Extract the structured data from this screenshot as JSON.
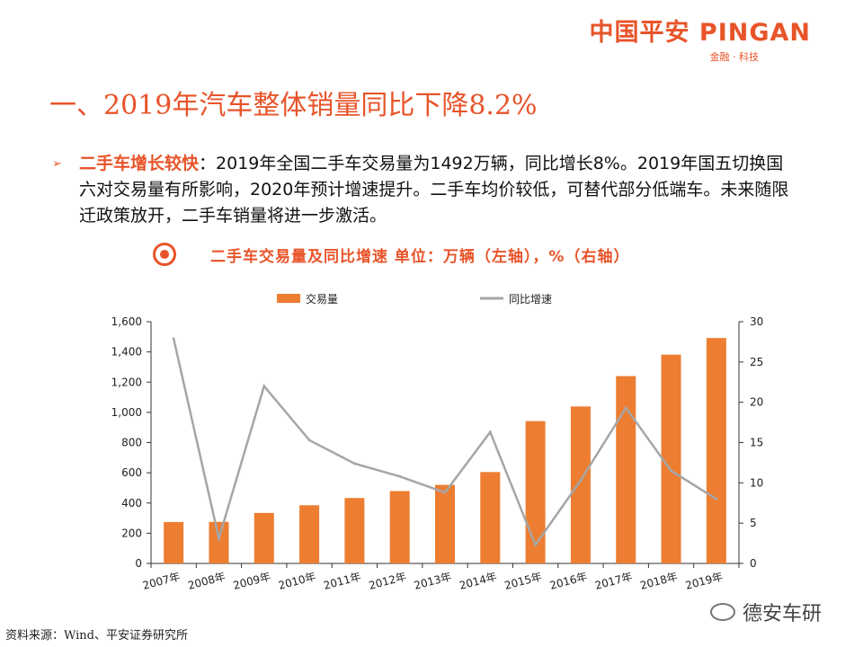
{
  "logo": {
    "main": "中国平安 PINGAN",
    "sub": "金融 · 科技"
  },
  "title": "一、2019年汽车整体销量同比下降8.2%",
  "bullet": {
    "highlight": "二手车增长较快",
    "text": "：2019年全国二手车交易量为1492万辆，同比增长8%。2019年国五切换国六对交易量有所影响，2020年预计增速提升。二手车均价较低，可替代部分低端车。未来随限迁政策放开，二手车销量将进一步激活。"
  },
  "chart_title": "二手车交易量及同比增速 单位：万辆（左轴），%（右轴）",
  "source": "资料来源：Wind、平安证券研究所",
  "watermark": "德安车研",
  "chart_data": {
    "type": "bar",
    "categories": [
      "2007年",
      "2008年",
      "2009年",
      "2010年",
      "2011年",
      "2012年",
      "2013年",
      "2014年",
      "2015年",
      "2016年",
      "2017年",
      "2018年",
      "2019年"
    ],
    "series": [
      {
        "name": "交易量",
        "type": "bar",
        "axis": "left",
        "color": "#ed7d31",
        "values": [
          274,
          275,
          334,
          385,
          433,
          479,
          520,
          605,
          942,
          1039,
          1240,
          1382,
          1492
        ]
      },
      {
        "name": "同比增速",
        "type": "line",
        "axis": "right",
        "color": "#a6a6a6",
        "values": [
          27.9,
          3.1,
          22.0,
          15.3,
          12.4,
          10.8,
          8.8,
          16.3,
          2.3,
          10.3,
          19.3,
          11.5,
          8.0
        ]
      }
    ],
    "y_left": {
      "min": 0,
      "max": 1600,
      "ticks": [
        "0",
        "200",
        "400",
        "600",
        "800",
        "1,000",
        "1,200",
        "1,400",
        "1,600"
      ]
    },
    "y_right": {
      "min": 0,
      "max": 30,
      "ticks": [
        "0",
        "5",
        "10",
        "15",
        "20",
        "25",
        "30"
      ]
    },
    "legend_position": "top",
    "grid": false
  }
}
